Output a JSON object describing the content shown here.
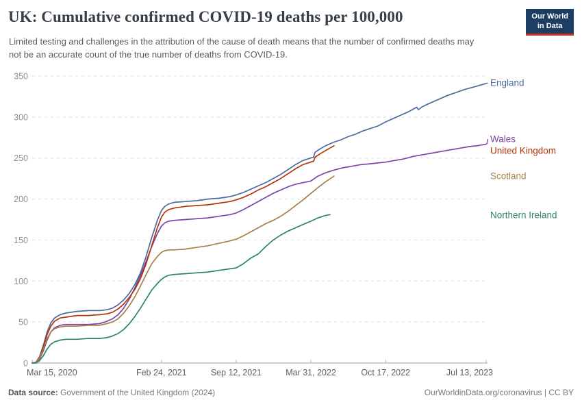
{
  "header": {
    "title": "UK: Cumulative confirmed COVID-19 deaths per 100,000",
    "subtitle": "Limited testing and challenges in the attribution of the cause of death means that the number of confirmed deaths may not be an accurate count of the true number of deaths from COVID-19.",
    "logo": {
      "line1": "Our World",
      "line2": "in Data"
    }
  },
  "footer": {
    "source_label": "Data source:",
    "source_value": " Government of the United Kingdom (2024)",
    "attribution": "OurWorldinData.org/coronavirus | CC BY"
  },
  "colors": {
    "england": "#4c6a9c",
    "wales": "#7a44a5",
    "united_kingdom": "#b13507",
    "scotland": "#a87f47",
    "northern_ireland": "#2c8465",
    "logo_bg": "#1d3d63",
    "logo_stripe": "#c8322b",
    "gridline": "#dddddd",
    "axis_line": "#9e9e9e",
    "y_tick_label": "#8e8e8e",
    "x_tick_label": "#5e5e5e"
  },
  "chart_data": {
    "type": "line",
    "title": "UK: Cumulative confirmed COVID-19 deaths per 100,000",
    "ylabel": "Cumulative confirmed COVID-19 deaths per 100,000",
    "ylim": [
      0,
      350
    ],
    "grid": true,
    "legend_position": "right",
    "y_axis": {
      "ticks": [
        0,
        50,
        100,
        150,
        200,
        250,
        300,
        350
      ]
    },
    "x_axis": {
      "unit": "days since 2020-03-15",
      "total_days": 1215,
      "ticks": [
        {
          "day": 0,
          "label": "Mar 15, 2020"
        },
        {
          "day": 346,
          "label": "Feb 24, 2021"
        },
        {
          "day": 546,
          "label": "Sep 12, 2021"
        },
        {
          "day": 746,
          "label": "Mar 31, 2022"
        },
        {
          "day": 946,
          "label": "Oct 17, 2022"
        },
        {
          "day": 1215,
          "label": "Jul 13, 2023"
        }
      ]
    },
    "series": [
      {
        "name": "England",
        "color": "#4c6a9c",
        "points": [
          [
            0,
            0
          ],
          [
            10,
            1
          ],
          [
            20,
            8
          ],
          [
            30,
            22
          ],
          [
            40,
            38
          ],
          [
            50,
            49
          ],
          [
            60,
            55
          ],
          [
            75,
            59
          ],
          [
            90,
            61
          ],
          [
            120,
            63
          ],
          [
            150,
            64
          ],
          [
            180,
            64
          ],
          [
            200,
            65
          ],
          [
            215,
            67
          ],
          [
            230,
            71
          ],
          [
            245,
            77
          ],
          [
            260,
            85
          ],
          [
            275,
            96
          ],
          [
            290,
            110
          ],
          [
            305,
            130
          ],
          [
            320,
            153
          ],
          [
            335,
            174
          ],
          [
            346,
            186
          ],
          [
            355,
            191
          ],
          [
            365,
            194
          ],
          [
            380,
            196
          ],
          [
            410,
            197
          ],
          [
            440,
            198
          ],
          [
            470,
            200
          ],
          [
            500,
            201
          ],
          [
            530,
            203
          ],
          [
            546,
            205
          ],
          [
            565,
            208
          ],
          [
            585,
            212
          ],
          [
            605,
            216
          ],
          [
            625,
            220
          ],
          [
            645,
            225
          ],
          [
            665,
            230
          ],
          [
            685,
            236
          ],
          [
            705,
            242
          ],
          [
            725,
            247
          ],
          [
            745,
            250
          ],
          [
            753,
            251
          ],
          [
            757,
            257
          ],
          [
            770,
            261
          ],
          [
            785,
            265
          ],
          [
            805,
            269
          ],
          [
            825,
            272
          ],
          [
            845,
            276
          ],
          [
            865,
            279
          ],
          [
            885,
            283
          ],
          [
            905,
            286
          ],
          [
            925,
            289
          ],
          [
            946,
            294
          ],
          [
            965,
            298
          ],
          [
            985,
            302
          ],
          [
            1005,
            306
          ],
          [
            1025,
            311
          ],
          [
            1029,
            312
          ],
          [
            1034,
            309
          ],
          [
            1042,
            312
          ],
          [
            1060,
            316
          ],
          [
            1085,
            321
          ],
          [
            1110,
            326
          ],
          [
            1135,
            330
          ],
          [
            1160,
            334
          ],
          [
            1185,
            337
          ],
          [
            1215,
            341
          ]
        ]
      },
      {
        "name": "Wales",
        "color": "#7a44a5",
        "points": [
          [
            0,
            0
          ],
          [
            10,
            1
          ],
          [
            20,
            5
          ],
          [
            30,
            15
          ],
          [
            40,
            28
          ],
          [
            50,
            38
          ],
          [
            60,
            43
          ],
          [
            75,
            46
          ],
          [
            90,
            47
          ],
          [
            120,
            47
          ],
          [
            150,
            47
          ],
          [
            180,
            48
          ],
          [
            195,
            50
          ],
          [
            215,
            54
          ],
          [
            230,
            59
          ],
          [
            245,
            67
          ],
          [
            260,
            78
          ],
          [
            275,
            92
          ],
          [
            290,
            107
          ],
          [
            305,
            124
          ],
          [
            320,
            142
          ],
          [
            335,
            158
          ],
          [
            346,
            167
          ],
          [
            355,
            171
          ],
          [
            365,
            173
          ],
          [
            380,
            174
          ],
          [
            410,
            175
          ],
          [
            440,
            176
          ],
          [
            470,
            177
          ],
          [
            500,
            179
          ],
          [
            530,
            181
          ],
          [
            546,
            183
          ],
          [
            565,
            187
          ],
          [
            585,
            192
          ],
          [
            605,
            197
          ],
          [
            625,
            202
          ],
          [
            645,
            207
          ],
          [
            665,
            211
          ],
          [
            685,
            215
          ],
          [
            705,
            218
          ],
          [
            725,
            220
          ],
          [
            746,
            222
          ],
          [
            765,
            228
          ],
          [
            785,
            232
          ],
          [
            805,
            235
          ],
          [
            830,
            238
          ],
          [
            855,
            240
          ],
          [
            880,
            242
          ],
          [
            905,
            243
          ],
          [
            925,
            244
          ],
          [
            946,
            245
          ],
          [
            970,
            247
          ],
          [
            995,
            249
          ],
          [
            1020,
            252
          ],
          [
            1045,
            254
          ],
          [
            1070,
            256
          ],
          [
            1095,
            258
          ],
          [
            1120,
            260
          ],
          [
            1145,
            262
          ],
          [
            1170,
            264
          ],
          [
            1190,
            265
          ],
          [
            1215,
            267
          ]
        ]
      },
      {
        "name": "United Kingdom",
        "color": "#b13507",
        "points": [
          [
            0,
            0
          ],
          [
            10,
            1
          ],
          [
            20,
            7
          ],
          [
            30,
            20
          ],
          [
            40,
            35
          ],
          [
            50,
            45
          ],
          [
            60,
            51
          ],
          [
            75,
            55
          ],
          [
            90,
            56
          ],
          [
            120,
            58
          ],
          [
            150,
            58
          ],
          [
            180,
            59
          ],
          [
            200,
            60
          ],
          [
            215,
            62
          ],
          [
            230,
            66
          ],
          [
            245,
            72
          ],
          [
            260,
            80
          ],
          [
            275,
            90
          ],
          [
            290,
            103
          ],
          [
            305,
            121
          ],
          [
            320,
            143
          ],
          [
            335,
            165
          ],
          [
            346,
            178
          ],
          [
            355,
            184
          ],
          [
            365,
            187
          ],
          [
            380,
            189
          ],
          [
            410,
            191
          ],
          [
            440,
            192
          ],
          [
            470,
            193
          ],
          [
            500,
            195
          ],
          [
            530,
            197
          ],
          [
            546,
            199
          ],
          [
            565,
            202
          ],
          [
            585,
            206
          ],
          [
            605,
            211
          ],
          [
            625,
            215
          ],
          [
            645,
            220
          ],
          [
            665,
            225
          ],
          [
            685,
            231
          ],
          [
            705,
            237
          ],
          [
            725,
            242
          ],
          [
            745,
            245
          ],
          [
            753,
            246
          ],
          [
            757,
            251
          ],
          [
            770,
            255
          ],
          [
            785,
            259
          ],
          [
            800,
            263
          ],
          [
            808,
            265
          ]
        ]
      },
      {
        "name": "Scotland",
        "color": "#a87f47",
        "points": [
          [
            0,
            0
          ],
          [
            10,
            1
          ],
          [
            20,
            6
          ],
          [
            30,
            17
          ],
          [
            40,
            30
          ],
          [
            50,
            38
          ],
          [
            60,
            42
          ],
          [
            75,
            44
          ],
          [
            90,
            45
          ],
          [
            120,
            45
          ],
          [
            150,
            46
          ],
          [
            180,
            46
          ],
          [
            200,
            48
          ],
          [
            215,
            50
          ],
          [
            230,
            54
          ],
          [
            245,
            61
          ],
          [
            260,
            70
          ],
          [
            275,
            81
          ],
          [
            290,
            94
          ],
          [
            305,
            108
          ],
          [
            320,
            121
          ],
          [
            335,
            130
          ],
          [
            346,
            135
          ],
          [
            355,
            137
          ],
          [
            365,
            138
          ],
          [
            380,
            138
          ],
          [
            410,
            139
          ],
          [
            440,
            141
          ],
          [
            470,
            143
          ],
          [
            500,
            146
          ],
          [
            530,
            149
          ],
          [
            546,
            151
          ],
          [
            565,
            155
          ],
          [
            585,
            160
          ],
          [
            605,
            165
          ],
          [
            625,
            170
          ],
          [
            645,
            174
          ],
          [
            665,
            179
          ],
          [
            685,
            185
          ],
          [
            705,
            192
          ],
          [
            725,
            199
          ],
          [
            746,
            207
          ],
          [
            765,
            214
          ],
          [
            785,
            221
          ],
          [
            808,
            228
          ]
        ]
      },
      {
        "name": "Northern Ireland",
        "color": "#2c8465",
        "points": [
          [
            0,
            0
          ],
          [
            10,
            0
          ],
          [
            20,
            3
          ],
          [
            30,
            9
          ],
          [
            40,
            17
          ],
          [
            50,
            23
          ],
          [
            60,
            26
          ],
          [
            75,
            28
          ],
          [
            90,
            29
          ],
          [
            120,
            29
          ],
          [
            150,
            30
          ],
          [
            180,
            30
          ],
          [
            200,
            31
          ],
          [
            215,
            33
          ],
          [
            230,
            36
          ],
          [
            245,
            41
          ],
          [
            260,
            48
          ],
          [
            275,
            57
          ],
          [
            290,
            67
          ],
          [
            305,
            78
          ],
          [
            320,
            89
          ],
          [
            335,
            97
          ],
          [
            346,
            102
          ],
          [
            355,
            105
          ],
          [
            365,
            107
          ],
          [
            380,
            108
          ],
          [
            410,
            109
          ],
          [
            440,
            110
          ],
          [
            470,
            111
          ],
          [
            500,
            113
          ],
          [
            546,
            116
          ],
          [
            565,
            121
          ],
          [
            585,
            128
          ],
          [
            605,
            133
          ],
          [
            625,
            142
          ],
          [
            645,
            150
          ],
          [
            665,
            156
          ],
          [
            685,
            161
          ],
          [
            705,
            165
          ],
          [
            725,
            169
          ],
          [
            746,
            173
          ],
          [
            765,
            177
          ],
          [
            785,
            180
          ],
          [
            797,
            181
          ]
        ]
      }
    ]
  }
}
